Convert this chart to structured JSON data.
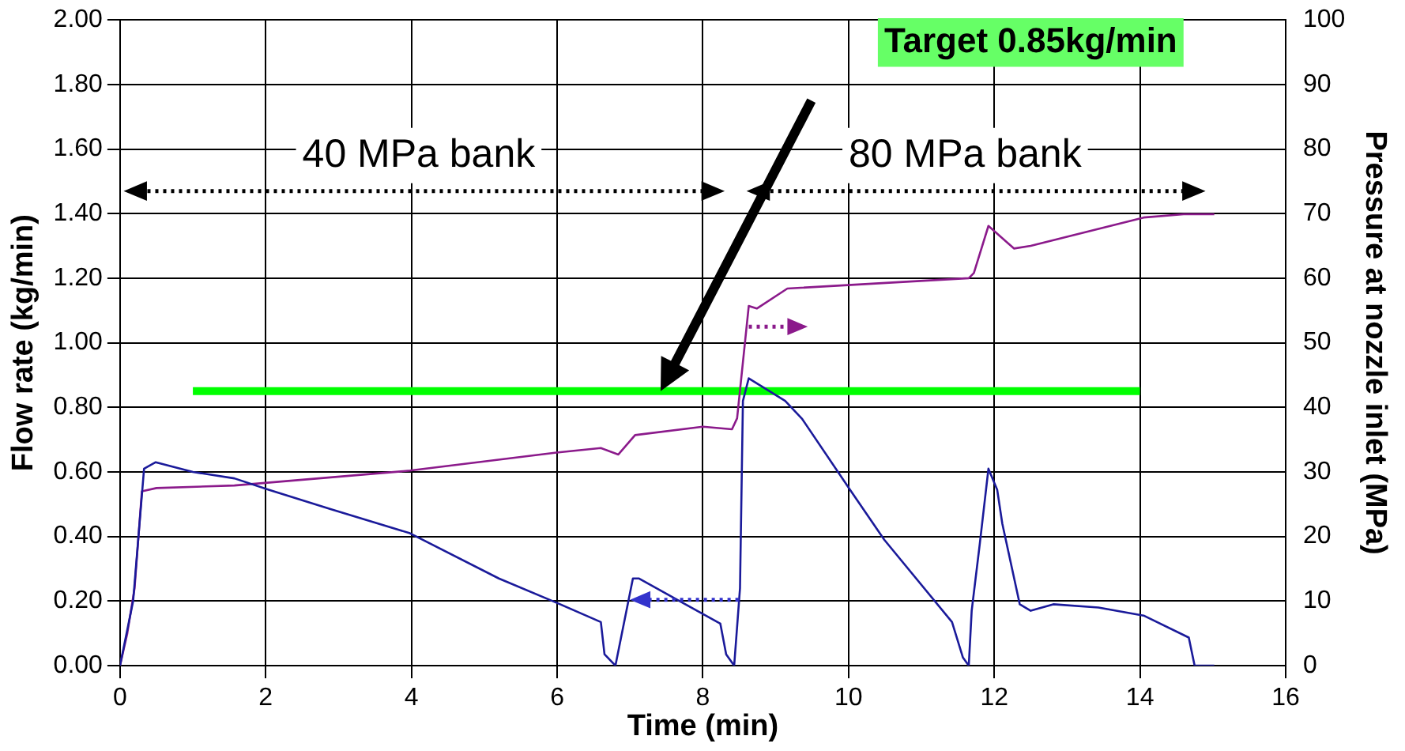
{
  "chart_data": {
    "type": "line",
    "xlabel": "Time (min)",
    "ylabel": "Flow rate (kg/min)",
    "y2label": "Pressure at nozzle inlet (MPa)",
    "xlim": [
      0,
      16
    ],
    "xticks": [
      0,
      2,
      4,
      6,
      8,
      10,
      12,
      14,
      16
    ],
    "ylim": [
      0,
      2
    ],
    "yticks": [
      {
        "value": 0,
        "label": "0.00"
      },
      {
        "value": 0.2,
        "label": "0.20"
      },
      {
        "value": 0.4,
        "label": "0.40"
      },
      {
        "value": 0.6,
        "label": "0.60"
      },
      {
        "value": 0.8,
        "label": "0.80"
      },
      {
        "value": 1,
        "label": "1.00"
      },
      {
        "value": 1.2,
        "label": "1.20"
      },
      {
        "value": 1.4,
        "label": "1.40"
      },
      {
        "value": 1.6,
        "label": "1.60"
      },
      {
        "value": 1.8,
        "label": "1.80"
      },
      {
        "value": 2,
        "label": "2.00"
      }
    ],
    "y2lim": [
      0,
      100
    ],
    "y2ticks": [
      0,
      10,
      20,
      30,
      40,
      50,
      60,
      70,
      80,
      90,
      100
    ],
    "grid": true,
    "legend": false,
    "marker": "none",
    "series": [
      {
        "color": "#1a1a9a",
        "x": [
          0,
          0.18,
          0.33,
          0.49,
          1.0,
          1.57,
          2.04,
          2.89,
          3.98,
          5.2,
          5.99,
          6.6,
          6.65,
          6.8,
          7.04,
          7.12,
          8.24,
          8.32,
          8.43,
          8.51,
          8.55,
          8.63,
          9.13,
          9.36,
          10.02,
          10.49,
          11.42,
          11.57,
          11.65,
          11.69,
          11.8,
          11.92,
          12.04,
          12.11,
          12.35,
          12.5,
          12.81,
          13.43,
          14.05,
          14.67,
          14.75,
          15.02
        ],
        "values": [
          0,
          0.2,
          0.61,
          0.63,
          0.6,
          0.58,
          0.545,
          0.485,
          0.41,
          0.27,
          0.195,
          0.135,
          0.035,
          0,
          0.27,
          0.27,
          0.13,
          0.035,
          0,
          0.24,
          0.82,
          0.89,
          0.82,
          0.765,
          0.545,
          0.39,
          0.135,
          0.025,
          0,
          0.17,
          0.375,
          0.61,
          0.545,
          0.44,
          0.19,
          0.17,
          0.19,
          0.18,
          0.155,
          0.087,
          0,
          0
        ]
      },
      {
        "color": "#8b1a8b",
        "axis": "y2",
        "x": [
          0,
          0.1,
          0.2,
          0.3,
          0.5,
          1.57,
          3.98,
          5.99,
          6.6,
          6.84,
          7.07,
          8.0,
          8.4,
          8.47,
          8.63,
          8.74,
          9.16,
          11.65,
          11.72,
          11.92,
          12.27,
          12.5,
          14.05,
          14.6,
          15.02
        ],
        "values": [
          0,
          5,
          12,
          27,
          27.5,
          27.9,
          30.2,
          33,
          33.7,
          32.7,
          35.7,
          37,
          36.6,
          38.3,
          55.7,
          55.3,
          58.4,
          60,
          60.8,
          68.1,
          64.6,
          65,
          69.4,
          69.9,
          69.9
        ]
      },
      {
        "color": "#00ff00",
        "x": [
          1,
          14
        ],
        "values": [
          0.85,
          0.85
        ]
      }
    ],
    "annotations": [
      "Target 0.85kg/min",
      "40 MPa bank",
      "80 MPa bank"
    ]
  }
}
